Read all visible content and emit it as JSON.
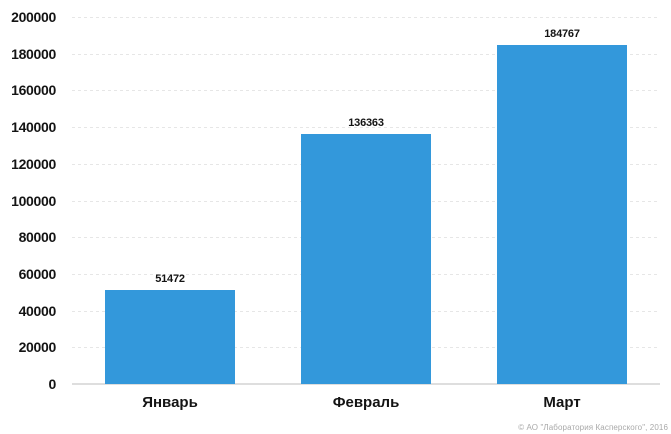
{
  "chart_data": {
    "type": "bar",
    "title": "",
    "categories": [
      "Январь",
      "Февраль",
      "Март"
    ],
    "values": [
      51472,
      136363,
      184767
    ],
    "value_labels": [
      "51472",
      "136363",
      "184767"
    ],
    "ylim": [
      0,
      200000
    ],
    "yticks": [
      0,
      20000,
      40000,
      60000,
      80000,
      100000,
      120000,
      140000,
      160000,
      180000,
      200000
    ],
    "xlabel": "",
    "ylabel": "",
    "grid": "horizontal-dotted",
    "legend": "none",
    "bar_color": "#3398db"
  },
  "footer": {
    "copyright": "© АО \"Лаборатория Касперского\", 2016"
  }
}
